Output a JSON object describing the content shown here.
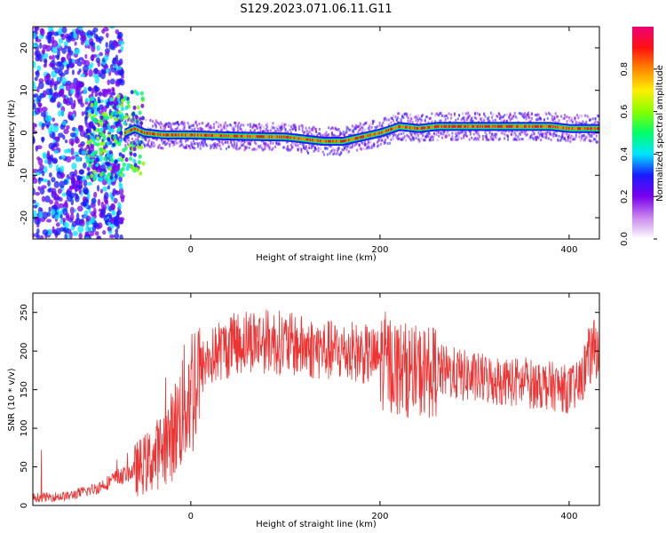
{
  "title": "S129.2023.071.06.11.G11",
  "chart_data": [
    {
      "type": "heatmap",
      "xlabel": "Height of straight line (km)",
      "ylabel": "Frequency (Hz)",
      "xlim": [
        -167,
        432
      ],
      "ylim": [
        -25,
        25
      ],
      "x_ticks": [
        0,
        200,
        400
      ],
      "y_ticks": [
        -20,
        -10,
        0,
        10,
        20
      ],
      "grid": false,
      "colorbar": {
        "label": "Normalized spectral amplitude",
        "range": [
          0,
          1
        ],
        "ticks": [
          "0.0",
          "0.2",
          "0.4",
          "0.6",
          "0.8"
        ],
        "tick_values": [
          0,
          0.2,
          0.4,
          0.6,
          0.8
        ],
        "colors": [
          "#ffffff",
          "#cc88ee",
          "#7a00ee",
          "#1a1aff",
          "#00e5ff",
          "#00ff66",
          "#88ff00",
          "#ffee00",
          "#ff8800",
          "#ff1111",
          "#ee0077"
        ]
      },
      "ridge": {
        "x": [
          -167,
          -120,
          -90,
          -70,
          -60,
          -50,
          -30,
          0,
          50,
          100,
          120,
          140,
          160,
          180,
          200,
          220,
          240,
          260,
          300,
          340,
          380,
          400,
          432
        ],
        "frequency": [
          -1,
          -1,
          -2,
          0,
          1,
          0,
          -0.5,
          -0.5,
          -0.8,
          -1,
          -1.5,
          -2,
          -2,
          -1,
          0,
          1.5,
          1,
          1.5,
          1.5,
          1.5,
          1.5,
          1,
          1
        ]
      }
    },
    {
      "type": "line",
      "xlabel": "Height of straight line (km)",
      "ylabel": "SNR (10 * v/v)",
      "xlim": [
        -167,
        432
      ],
      "ylim": [
        0,
        275
      ],
      "x_ticks": [
        0,
        200,
        400
      ],
      "y_ticks": [
        0,
        50,
        100,
        150,
        200,
        250
      ],
      "grid": false,
      "series_color": "#ee3333",
      "trend": {
        "x": [
          -167,
          -130,
          -100,
          -80,
          -60,
          -40,
          -20,
          0,
          15,
          30,
          60,
          90,
          120,
          150,
          180,
          200,
          220,
          240,
          260,
          300,
          340,
          380,
          400,
          410,
          420,
          432
        ],
        "snr": [
          10,
          12,
          22,
          35,
          45,
          60,
          90,
          150,
          185,
          200,
          215,
          212,
          205,
          200,
          197,
          190,
          178,
          172,
          175,
          165,
          160,
          155,
          150,
          155,
          190,
          210
        ]
      }
    }
  ]
}
